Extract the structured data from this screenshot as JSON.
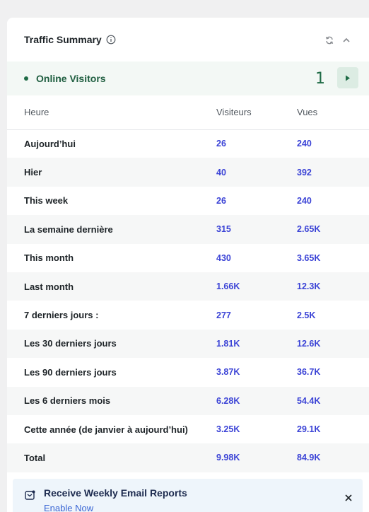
{
  "widget": {
    "title": "Traffic Summary",
    "icons": {
      "info": "info-icon",
      "refresh": "refresh-icon",
      "collapse": "chevron-up-icon"
    }
  },
  "online": {
    "label": "Online Visitors",
    "count": "1",
    "status_color": "#1f6b46",
    "action_icon": "play-icon"
  },
  "table": {
    "headers": [
      "Heure",
      "Visiteurs",
      "Vues"
    ],
    "rows": [
      [
        "Aujourd’hui",
        "26",
        "240"
      ],
      [
        "Hier",
        "40",
        "392"
      ],
      [
        "This week",
        "26",
        "240"
      ],
      [
        "La semaine dernière",
        "315",
        "2.65K"
      ],
      [
        "This month",
        "430",
        "3.65K"
      ],
      [
        "Last month",
        "1.66K",
        "12.3K"
      ],
      [
        "7 derniers jours :",
        "277",
        "2.5K"
      ],
      [
        "Les 30 derniers jours",
        "1.81K",
        "12.6K"
      ],
      [
        "Les 90 derniers jours",
        "3.87K",
        "36.7K"
      ],
      [
        "Les 6 derniers mois",
        "6.28K",
        "54.4K"
      ],
      [
        "Cette année (de janvier à aujourd’hui)",
        "3.25K",
        "29.1K"
      ],
      [
        "Total",
        "9.98K",
        "84.9K"
      ]
    ]
  },
  "email_banner": {
    "title": "Receive Weekly Email Reports",
    "link": "Enable Now",
    "icon": "email-icon",
    "close_icon": "close-icon"
  },
  "colors": {
    "accent": "#3b43d6",
    "online": "#1f6b46",
    "banner": "#eef5fb"
  }
}
